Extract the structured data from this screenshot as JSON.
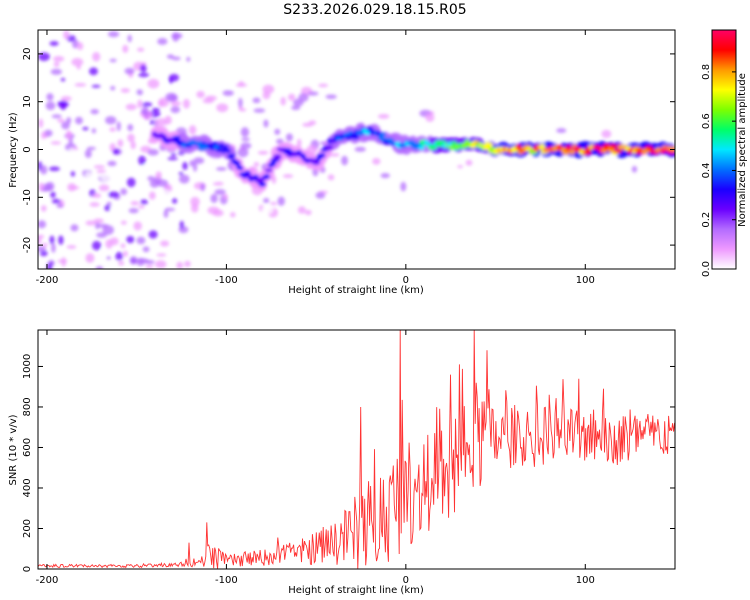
{
  "title": "S233.2026.029.18.15.R05",
  "chart_data": [
    {
      "type": "heatmap",
      "title": "S233.2026.029.18.15.R05",
      "xlabel": "Height of straight line (km)",
      "ylabel": "Frequency (Hz)",
      "xlim": [
        -205,
        150
      ],
      "ylim": [
        -25,
        25
      ],
      "xticks": [
        -200,
        -100,
        0,
        100
      ],
      "xtick_labels": [
        "-200",
        "-100",
        "0",
        "100"
      ],
      "yticks": [
        -20,
        -10,
        0,
        10,
        20
      ],
      "ytick_labels": [
        "-20",
        "-10",
        "0",
        "10",
        "20"
      ],
      "colorbar": {
        "label": "Normalized spectral amplitude",
        "range": [
          0,
          0.97
        ],
        "ticks": [
          0.0,
          0.2,
          0.4,
          0.6,
          0.8
        ],
        "tick_labels": [
          "0.0",
          "0.2",
          "0.4",
          "0.6",
          "0.8"
        ],
        "colors": [
          "#ffffff",
          "#ee99ff",
          "#b36bff",
          "#6a00ff",
          "#1a00ff",
          "#0070ff",
          "#00e8ff",
          "#00ff66",
          "#7dff00",
          "#ffff00",
          "#ff9900",
          "#ff0000",
          "#ff0066"
        ]
      },
      "ridge": {
        "x": [
          -140,
          -130,
          -120,
          -110,
          -100,
          -95,
          -90,
          -80,
          -70,
          -60,
          -50,
          -40,
          -30,
          -20,
          -10,
          0,
          10,
          20,
          30,
          40,
          50,
          60,
          70,
          80,
          90,
          100,
          110,
          120,
          130,
          140,
          150
        ],
        "frequency": [
          3,
          2,
          1,
          1,
          0,
          -3,
          -5,
          -7,
          0,
          -1,
          -3,
          2,
          3,
          4,
          2,
          1,
          1,
          1,
          1,
          1,
          0,
          0,
          0,
          0,
          0,
          0,
          0,
          0,
          0,
          0,
          0
        ],
        "amplitude": [
          0.3,
          0.3,
          0.4,
          0.4,
          0.35,
          0.35,
          0.3,
          0.3,
          0.3,
          0.3,
          0.3,
          0.35,
          0.4,
          0.45,
          0.45,
          0.5,
          0.55,
          0.6,
          0.65,
          0.75,
          0.8,
          0.85,
          0.9,
          0.92,
          0.92,
          0.93,
          0.94,
          0.95,
          0.95,
          0.95,
          0.95
        ]
      }
    },
    {
      "type": "line",
      "xlabel": "Height of straight line (km)",
      "ylabel": "SNR (10 * v/v)",
      "xlim": [
        -205,
        150
      ],
      "ylim": [
        0,
        1180
      ],
      "xticks": [
        -200,
        -100,
        0,
        100
      ],
      "xtick_labels": [
        "-200",
        "-100",
        "0",
        "100"
      ],
      "yticks": [
        0,
        200,
        400,
        600,
        800,
        1000
      ],
      "ytick_labels": [
        "0",
        "200",
        "400",
        "600",
        "800",
        "1000"
      ],
      "color": "#ff3333",
      "envelope": {
        "x": [
          -205,
          -150,
          -125,
          -120,
          -112,
          -110,
          -100,
          -80,
          -60,
          -40,
          -30,
          -20,
          -10,
          -5,
          -2,
          0,
          10,
          20,
          30,
          35,
          40,
          50,
          60,
          80,
          100,
          120,
          140,
          150
        ],
        "baseline": [
          15,
          15,
          20,
          40,
          30,
          70,
          40,
          55,
          80,
          130,
          170,
          230,
          280,
          330,
          380,
          380,
          400,
          430,
          500,
          560,
          620,
          640,
          640,
          660,
          660,
          640,
          660,
          660
        ],
        "amplitude": [
          15,
          15,
          20,
          60,
          40,
          160,
          60,
          80,
          120,
          220,
          350,
          480,
          520,
          560,
          560,
          540,
          520,
          560,
          560,
          560,
          560,
          320,
          320,
          300,
          280,
          260,
          240,
          200
        ]
      },
      "spikes": [
        {
          "x": -111,
          "y": 230
        },
        {
          "x": -121,
          "y": 130
        },
        {
          "x": -3,
          "y": 1180
        },
        {
          "x": 38,
          "y": 1180
        },
        {
          "x": 45,
          "y": 1080
        },
        {
          "x": 30,
          "y": 1010
        },
        {
          "x": 25,
          "y": 960
        },
        {
          "x": -25,
          "y": 800
        },
        {
          "x": 80,
          "y": 860
        },
        {
          "x": 110,
          "y": 890
        }
      ]
    }
  ]
}
